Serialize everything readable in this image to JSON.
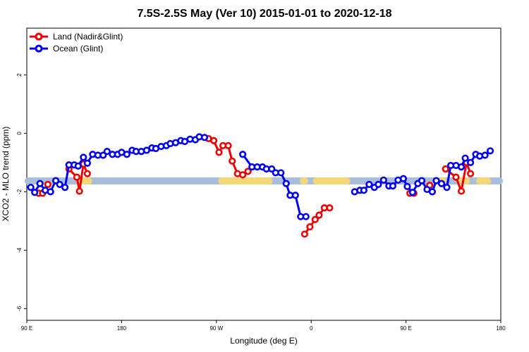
{
  "chart_data": {
    "type": "line",
    "title": "7.5S-2.5S May (Ver 10)   2015-01-01 to 2020-12-18",
    "xlabel": "Longitude (deg E)",
    "ylabel": "XCO2 - MLO trend (ppm)",
    "xlim": [
      90,
      450
    ],
    "ylim": [
      -6.4,
      3.6
    ],
    "x_ticks": [
      {
        "value": 90,
        "label": "90 E"
      },
      {
        "value": 162,
        "label": "180"
      },
      {
        "value": 234,
        "label": "90 W"
      },
      {
        "value": 306,
        "label": "0"
      },
      {
        "value": 378,
        "label": "90 E"
      },
      {
        "value": 450,
        "label": "180"
      }
    ],
    "y_ticks": [
      2,
      0,
      -2,
      -4,
      -6
    ],
    "legend": {
      "position": "top-left",
      "entries": [
        {
          "name": "Land (Nadir&Glint)",
          "color": "#ee0000"
        },
        {
          "name": "Ocean (Glint)",
          "color": "#0000ee"
        }
      ]
    },
    "surface_band": {
      "y": -1.63,
      "ocean_color": "#a8bedc",
      "land_color": "#f5d77a",
      "land_segments": [
        [
          132,
          137
        ],
        [
          238,
          274
        ],
        [
          300,
          301
        ],
        [
          310,
          333
        ],
        [
          402,
          406
        ],
        [
          420,
          424
        ],
        [
          434,
          440
        ]
      ]
    },
    "series": [
      {
        "name": "Ocean (Glint)",
        "color": "#0000ee",
        "points": [
          [
            93,
            -1.85
          ],
          [
            96,
            -2.02
          ],
          [
            100,
            -1.72
          ],
          [
            104,
            -1.95
          ],
          [
            108,
            -2.0
          ],
          [
            112,
            -1.62
          ],
          [
            115,
            -1.75
          ],
          [
            119,
            -1.85
          ],
          [
            122,
            -1.08
          ],
          [
            126,
            -1.08
          ],
          [
            129,
            -1.12
          ],
          [
            133,
            -0.82
          ],
          [
            136,
            -1.02
          ],
          [
            140,
            -0.72
          ],
          [
            144,
            -0.75
          ],
          [
            148,
            -0.75
          ],
          [
            151,
            -0.62
          ],
          [
            155,
            -0.72
          ],
          [
            159,
            -0.72
          ],
          [
            162,
            -0.65
          ],
          [
            166,
            -0.72
          ],
          [
            170,
            -0.58
          ],
          [
            173,
            -0.62
          ],
          [
            177,
            -0.62
          ],
          [
            181,
            -0.58
          ],
          [
            185,
            -0.5
          ],
          [
            188,
            -0.52
          ],
          [
            192,
            -0.45
          ],
          [
            196,
            -0.42
          ],
          [
            199,
            -0.35
          ],
          [
            203,
            -0.32
          ],
          [
            207,
            -0.25
          ],
          [
            210,
            -0.28
          ],
          [
            214,
            -0.2
          ],
          [
            218,
            -0.22
          ],
          [
            221,
            -0.12
          ],
          [
            225,
            -0.14
          ],
          [
            254,
            -0.72
          ],
          [
            261,
            -1.15
          ],
          [
            265,
            -1.15
          ],
          [
            269,
            -1.15
          ],
          [
            272,
            -1.22
          ],
          [
            276,
            -1.22
          ],
          [
            279,
            -1.35
          ],
          [
            283,
            -1.35
          ],
          [
            287,
            -1.72
          ],
          [
            290,
            -2.12
          ],
          [
            294,
            -2.12
          ],
          [
            298,
            -2.85
          ],
          [
            302,
            -2.85
          ],
          [
            339,
            -2.0
          ],
          [
            343,
            -1.95
          ],
          [
            346,
            -1.95
          ],
          [
            350,
            -1.75
          ],
          [
            354,
            -1.85
          ],
          [
            357,
            -1.75
          ],
          [
            361,
            -1.6
          ],
          [
            365,
            -1.8
          ],
          [
            368,
            -1.8
          ],
          [
            372,
            -1.6
          ],
          [
            376,
            -1.55
          ],
          [
            379,
            -1.82
          ],
          [
            383,
            -2.02
          ],
          [
            387,
            -1.72
          ],
          [
            390,
            -1.62
          ],
          [
            394,
            -1.92
          ],
          [
            398,
            -2.0
          ],
          [
            401,
            -1.62
          ],
          [
            405,
            -1.72
          ],
          [
            409,
            -1.85
          ],
          [
            412,
            -1.1
          ],
          [
            416,
            -1.1
          ],
          [
            420,
            -1.15
          ],
          [
            423,
            -0.85
          ],
          [
            427,
            -1.0
          ],
          [
            431,
            -0.72
          ],
          [
            434,
            -0.78
          ],
          [
            438,
            -0.75
          ],
          [
            442,
            -0.6
          ]
        ]
      },
      {
        "name": "Land (Nadir&Glint)",
        "color": "#ee0000",
        "points": [
          [
            99,
            -2.05
          ],
          [
            102,
            -2.05
          ],
          [
            106,
            -1.75
          ],
          [
            122,
            -1.22
          ],
          [
            128,
            -1.5
          ],
          [
            130,
            -1.98
          ],
          [
            133,
            -1.05
          ],
          [
            136,
            -1.38
          ],
          [
            228,
            -0.18
          ],
          [
            232,
            -0.25
          ],
          [
            236,
            -0.65
          ],
          [
            239,
            -0.42
          ],
          [
            243,
            -0.42
          ],
          [
            246,
            -0.95
          ],
          [
            250,
            -1.38
          ],
          [
            254,
            -1.42
          ],
          [
            258,
            -1.3
          ],
          [
            301,
            -3.45
          ],
          [
            305,
            -3.2
          ],
          [
            309,
            -2.95
          ],
          [
            312,
            -2.8
          ],
          [
            316,
            -2.55
          ],
          [
            320,
            -2.55
          ],
          [
            381,
            -2.05
          ],
          [
            384,
            -2.05
          ],
          [
            396,
            -1.78
          ],
          [
            408,
            -1.22
          ],
          [
            416,
            -1.5
          ],
          [
            420,
            -1.98
          ],
          [
            424,
            -1.0
          ],
          [
            427,
            -1.38
          ]
        ]
      }
    ]
  }
}
